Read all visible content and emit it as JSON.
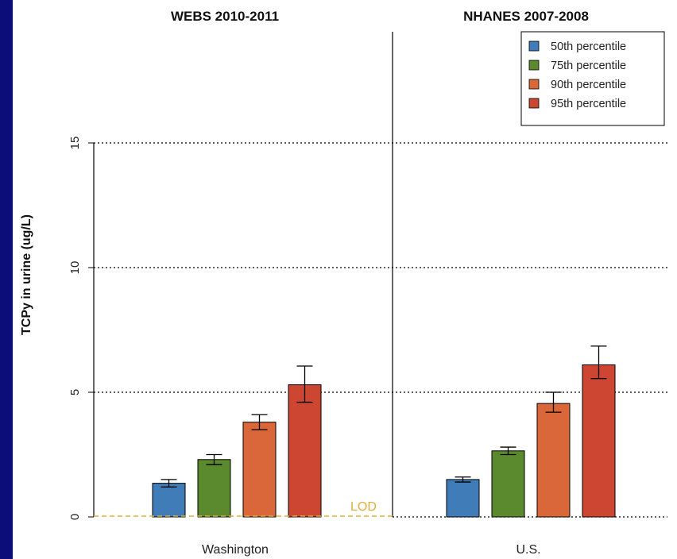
{
  "chart_data": {
    "type": "bar",
    "ylabel": "TCPy in urine (ug/L)",
    "ylim": [
      0,
      16.5
    ],
    "yticks": [
      0,
      5,
      10,
      15
    ],
    "grid": "dashed horizontal lines at y ticks",
    "legend_position": "top-right",
    "panels": [
      {
        "title": "WEBS 2010-2011",
        "category": "Washington",
        "lod_label": "LOD",
        "lod_value": 0
      },
      {
        "title": "NHANES 2007-2008",
        "category": "U.S."
      }
    ],
    "series": [
      {
        "name": "50th percentile",
        "color": "#3f7cb8",
        "values": [
          1.35,
          1.5
        ],
        "err_low": [
          1.2,
          1.4
        ],
        "err_high": [
          1.5,
          1.6
        ]
      },
      {
        "name": "75th percentile",
        "color": "#5b8a2e",
        "values": [
          2.3,
          2.65
        ],
        "err_low": [
          2.1,
          2.5
        ],
        "err_high": [
          2.5,
          2.8
        ]
      },
      {
        "name": "90th percentile",
        "color": "#d9673a",
        "values": [
          3.8,
          4.55
        ],
        "err_low": [
          3.5,
          4.2
        ],
        "err_high": [
          4.1,
          5.0
        ]
      },
      {
        "name": "95th percentile",
        "color": "#cc4631",
        "values": [
          5.3,
          6.1
        ],
        "err_low": [
          4.6,
          5.55
        ],
        "err_high": [
          6.05,
          6.85
        ]
      }
    ],
    "colors": {
      "lod_line": "#e0b03c",
      "frame": "#000000"
    }
  }
}
